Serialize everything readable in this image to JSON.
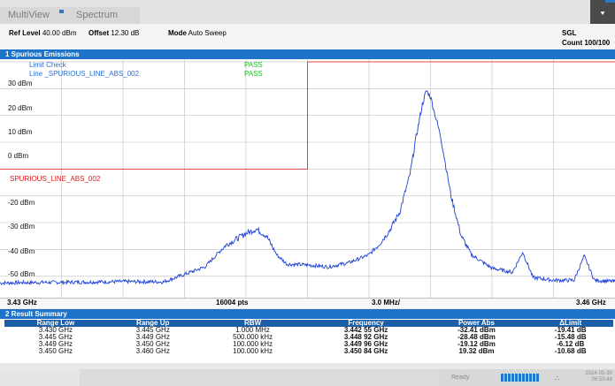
{
  "tabs": {
    "multiview": "MultiView",
    "spectrum": "Spectrum"
  },
  "settings": {
    "ref_level_label": "Ref Level",
    "ref_level_value": "40.00 dBm",
    "offset_label": "Offset",
    "offset_value": "12.30 dB",
    "mode_label": "Mode",
    "mode_value": "Auto Sweep",
    "sgl": "SGL",
    "count": "Count 100/100"
  },
  "diagram": {
    "title": "1 Spurious Emissions",
    "limit_check_label": "Limit Check",
    "limit_line_label": "Line _SPURIOUS_LINE_ABS_002",
    "limit_check_result": "PASS",
    "limit_line_result": "PASS",
    "limit_line_name": "SPURIOUS_LINE_ABS_002",
    "y_labels": [
      "30 dBm",
      "20 dBm",
      "10 dBm",
      "0 dBm",
      "-20 dBm",
      "-30 dBm",
      "-40 dBm",
      "-50 dBm"
    ],
    "x_start": "3.43 GHz",
    "points": "16004 pts",
    "span_per_div": "3.0 MHz/",
    "x_stop": "3.46 GHz"
  },
  "chart_data": {
    "type": "line",
    "xlim": [
      3.43,
      3.46
    ],
    "ylim": [
      -58,
      31
    ],
    "yticks": [
      30,
      20,
      10,
      0,
      -10,
      -20,
      -30,
      -40,
      -50
    ],
    "limit_line": {
      "name": "SPURIOUS_LINE_ABS_002",
      "x": [
        3.43,
        3.445,
        3.445,
        3.46
      ],
      "y": [
        -10,
        -10,
        30,
        30
      ]
    },
    "series": [
      {
        "x": [
          3.43,
          3.432,
          3.434,
          3.436,
          3.438,
          3.44,
          3.441,
          3.442,
          3.4425,
          3.443,
          3.4435,
          3.444,
          3.445,
          3.446,
          3.447,
          3.448,
          3.4485,
          3.449,
          3.4495,
          3.45,
          3.4503,
          3.4506,
          3.4508,
          3.451,
          3.4515,
          3.452,
          3.4525,
          3.453,
          3.454,
          3.455,
          3.4555,
          3.456,
          3.457,
          3.458,
          3.4585,
          3.459,
          3.46
        ],
        "y": [
          -52.5,
          -52.3,
          -52.2,
          -52.0,
          -52.1,
          -46.5,
          -38.5,
          -34.0,
          -32.4,
          -35.0,
          -42.0,
          -45.5,
          -45.8,
          -46.5,
          -45.0,
          -42.0,
          -38.0,
          -33.0,
          -26.0,
          -12.0,
          2.0,
          14.0,
          19.3,
          17.0,
          2.0,
          -20.0,
          -35.0,
          -42.0,
          -47.0,
          -48.5,
          -41.0,
          -50.5,
          -51.5,
          -51.5,
          -42.5,
          -51.5,
          -52.0
        ]
      }
    ]
  },
  "result_summary": {
    "title": "2 Result Summary",
    "columns": [
      "Range Low",
      "Range Up",
      "RBW",
      "Frequency",
      "Power Abs",
      "ΔLimit"
    ],
    "rows": [
      [
        "3.430 GHz",
        "3.445 GHz",
        "1.000 MHz",
        "3.442 55 GHz",
        "-32.41 dBm",
        "-19.41 dB"
      ],
      [
        "3.445 GHz",
        "3.449 GHz",
        "500.000 kHz",
        "3.448 92 GHz",
        "-28.48 dBm",
        "-15.48 dB"
      ],
      [
        "3.449 GHz",
        "3.450 GHz",
        "100.000 kHz",
        "3.449 96 GHz",
        "-19.12 dBm",
        "-6.12 dB"
      ],
      [
        "3.450 GHz",
        "3.460 GHz",
        "100.000 kHz",
        "3.450 84 GHz",
        "19.32 dBm",
        "-10.68 dB"
      ]
    ]
  },
  "status": {
    "ready": "Ready",
    "date": "2024-05-30",
    "time": "06:50:48"
  },
  "colors": {
    "accent": "#1d73c7",
    "trace": "#1b3fd6",
    "limit": "#e01919",
    "pass": "#19c21d"
  },
  "icons": {
    "menu": "chevron-down-icon",
    "network": "network-icon"
  }
}
